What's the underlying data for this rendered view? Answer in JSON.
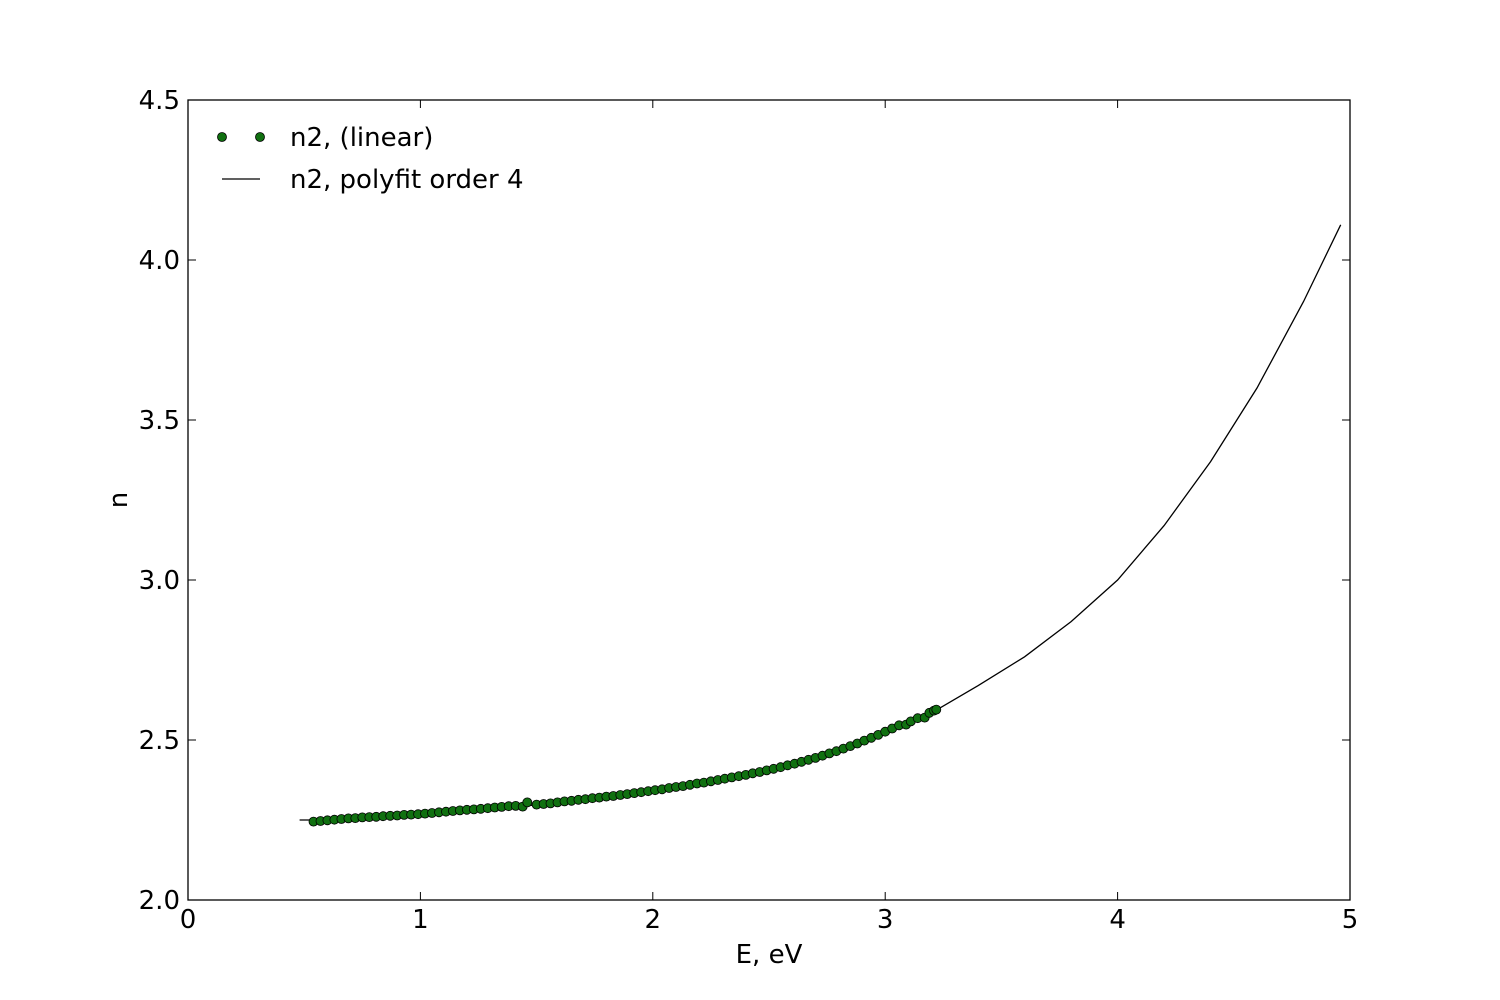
{
  "chart_data": {
    "type": "scatter",
    "xlabel": "E, eV",
    "ylabel": "n",
    "xlim": [
      0,
      5
    ],
    "ylim": [
      2.0,
      4.5
    ],
    "x_ticks": [
      "0",
      "1",
      "2",
      "3",
      "4",
      "5"
    ],
    "y_ticks": [
      "2.0",
      "2.5",
      "3.0",
      "3.5",
      "4.0",
      "4.5"
    ],
    "grid": false,
    "legend_position": "top-left",
    "series": [
      {
        "name": "n2, (linear)",
        "kind": "markers",
        "color": "#107010",
        "x": [
          0.54,
          0.57,
          0.6,
          0.63,
          0.66,
          0.69,
          0.72,
          0.75,
          0.78,
          0.81,
          0.84,
          0.87,
          0.9,
          0.93,
          0.96,
          0.99,
          1.02,
          1.05,
          1.08,
          1.11,
          1.14,
          1.17,
          1.2,
          1.23,
          1.26,
          1.29,
          1.32,
          1.35,
          1.38,
          1.41,
          1.44,
          1.46,
          1.5,
          1.53,
          1.56,
          1.59,
          1.62,
          1.65,
          1.68,
          1.71,
          1.74,
          1.77,
          1.8,
          1.83,
          1.86,
          1.89,
          1.92,
          1.95,
          1.98,
          2.01,
          2.04,
          2.07,
          2.1,
          2.13,
          2.16,
          2.19,
          2.22,
          2.25,
          2.28,
          2.31,
          2.34,
          2.37,
          2.4,
          2.43,
          2.46,
          2.49,
          2.52,
          2.55,
          2.58,
          2.61,
          2.64,
          2.67,
          2.7,
          2.73,
          2.76,
          2.79,
          2.82,
          2.85,
          2.88,
          2.91,
          2.94,
          2.97,
          3.0,
          3.03,
          3.06,
          3.09,
          3.11,
          3.14,
          3.17,
          3.19,
          3.21,
          3.22
        ],
        "y": [
          2.245,
          2.247,
          2.249,
          2.251,
          2.253,
          2.255,
          2.256,
          2.258,
          2.259,
          2.26,
          2.262,
          2.263,
          2.264,
          2.266,
          2.267,
          2.268,
          2.27,
          2.272,
          2.274,
          2.276,
          2.278,
          2.28,
          2.282,
          2.283,
          2.285,
          2.287,
          2.289,
          2.291,
          2.293,
          2.294,
          2.292,
          2.305,
          2.298,
          2.3,
          2.302,
          2.305,
          2.308,
          2.31,
          2.313,
          2.315,
          2.318,
          2.32,
          2.323,
          2.325,
          2.328,
          2.331,
          2.334,
          2.337,
          2.34,
          2.343,
          2.346,
          2.35,
          2.353,
          2.356,
          2.36,
          2.364,
          2.367,
          2.371,
          2.375,
          2.379,
          2.383,
          2.387,
          2.391,
          2.396,
          2.4,
          2.405,
          2.41,
          2.415,
          2.421,
          2.426,
          2.432,
          2.438,
          2.444,
          2.451,
          2.458,
          2.465,
          2.473,
          2.481,
          2.489,
          2.498,
          2.507,
          2.516,
          2.526,
          2.536,
          2.546,
          2.548,
          2.558,
          2.568,
          2.57,
          2.585,
          2.592,
          2.595
        ]
      },
      {
        "name": "n2, polyfit order 4",
        "kind": "line",
        "color": "#000000",
        "x": [
          0.48,
          0.6,
          0.8,
          1.0,
          1.2,
          1.4,
          1.6,
          1.8,
          2.0,
          2.2,
          2.4,
          2.6,
          2.8,
          3.0,
          3.2,
          3.4,
          3.6,
          3.8,
          4.0,
          4.2,
          4.4,
          4.6,
          4.8,
          4.96
        ],
        "y": [
          2.25,
          2.25,
          2.258,
          2.267,
          2.278,
          2.29,
          2.305,
          2.32,
          2.34,
          2.362,
          2.39,
          2.425,
          2.468,
          2.52,
          2.585,
          2.67,
          2.76,
          2.87,
          3.0,
          3.17,
          3.37,
          3.6,
          3.87,
          4.11
        ]
      }
    ]
  }
}
